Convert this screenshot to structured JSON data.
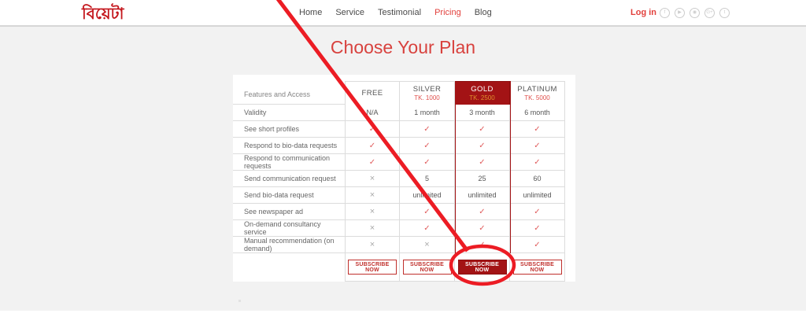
{
  "header": {
    "logo": {
      "text": "বিয়েটা"
    },
    "nav": {
      "items": [
        {
          "id": "home",
          "label": "Home",
          "active": false
        },
        {
          "id": "service",
          "label": "Service",
          "active": false
        },
        {
          "id": "testimonial",
          "label": "Testimonial",
          "active": false
        },
        {
          "id": "pricing",
          "label": "Pricing",
          "active": true
        },
        {
          "id": "blog",
          "label": "Blog",
          "active": false
        }
      ]
    },
    "login_label": "Log in",
    "social_icons": [
      {
        "name": "facebook-icon",
        "glyph": "f"
      },
      {
        "name": "youtube-icon",
        "glyph": "▶"
      },
      {
        "name": "instagram-icon",
        "glyph": "◉"
      },
      {
        "name": "google-plus-icon",
        "glyph": "G+"
      },
      {
        "name": "twitter-icon",
        "glyph": "t"
      }
    ]
  },
  "main": {
    "title": "Choose Your Plan"
  },
  "pricing_table": {
    "features_header": "Features and Access",
    "plans": [
      {
        "id": "free",
        "name": "FREE",
        "price": "",
        "highlighted": false
      },
      {
        "id": "silver",
        "name": "SILVER",
        "price": "TK. 1000",
        "highlighted": false
      },
      {
        "id": "gold",
        "name": "GOLD",
        "price": "TK. 2500",
        "highlighted": true
      },
      {
        "id": "platinum",
        "name": "PLATINUM",
        "price": "TK. 5000",
        "highlighted": false
      }
    ],
    "rows": [
      {
        "feature": "Validity",
        "values": [
          "N/A",
          "1 month",
          "3 month",
          "6 month"
        ]
      },
      {
        "feature": "See short profiles",
        "values": [
          "check",
          "check",
          "check",
          "check"
        ]
      },
      {
        "feature": "Respond to bio-data requests",
        "values": [
          "check",
          "check",
          "check",
          "check"
        ]
      },
      {
        "feature": "Respond to communication requests",
        "values": [
          "check",
          "check",
          "check",
          "check"
        ]
      },
      {
        "feature": "Send communication request",
        "values": [
          "cross",
          "5",
          "25",
          "60"
        ]
      },
      {
        "feature": "Send bio-data request",
        "values": [
          "cross",
          "unlimited",
          "unlimited",
          "unlimited"
        ]
      },
      {
        "feature": "See newspaper ad",
        "values": [
          "cross",
          "check",
          "check",
          "check"
        ]
      },
      {
        "feature": "On-demand consultancy service",
        "values": [
          "cross",
          "check",
          "check",
          "check"
        ]
      },
      {
        "feature": "Manual recommendation (on demand)",
        "values": [
          "cross",
          "cross",
          "check",
          "check"
        ]
      }
    ],
    "symbols": {
      "check": "✓",
      "cross": "×"
    },
    "cta_label": "SUBSCRIBE NOW"
  },
  "colors": {
    "brand_dark_red": "#a31315",
    "accent_red": "#d8423e",
    "price_orange": "#de8f2c",
    "annotation_red": "#ec1c24"
  },
  "annotation": {
    "target": "gold-subscribe-button"
  }
}
